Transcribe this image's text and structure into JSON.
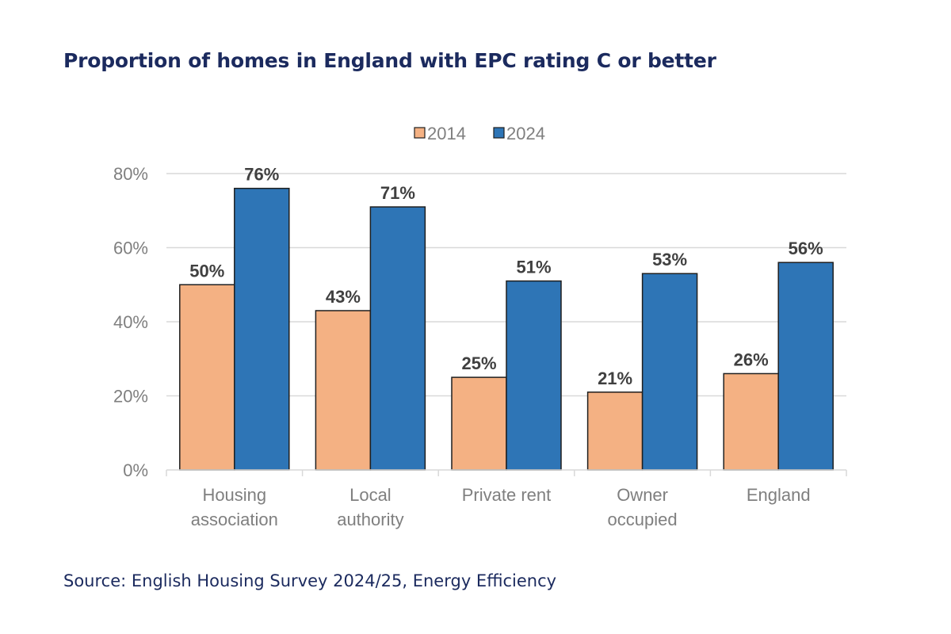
{
  "header": {
    "title": "Proportion of homes in England with EPC rating C or better"
  },
  "footer": {
    "source": "Source: English Housing Survey 2024/25, Energy Efficiency"
  },
  "chart_data": {
    "type": "bar",
    "title": "Proportion of homes in England with EPC rating C or better",
    "xlabel": "",
    "ylabel": "",
    "categories": [
      [
        "Housing",
        "association"
      ],
      [
        "Local",
        "authority"
      ],
      [
        "Private rent"
      ],
      [
        "Owner",
        "occupied"
      ],
      [
        "England"
      ]
    ],
    "series": [
      {
        "name": "2014",
        "color": "#f4b183",
        "values": [
          50,
          43,
          25,
          21,
          26
        ],
        "labels": [
          "50%",
          "43%",
          "25%",
          "21%",
          "26%"
        ]
      },
      {
        "name": "2024",
        "color": "#2e75b6",
        "values": [
          76,
          71,
          51,
          53,
          56
        ],
        "labels": [
          "76%",
          "71%",
          "51%",
          "53%",
          "56%"
        ]
      }
    ],
    "ylim": [
      0,
      80
    ],
    "yticks": [
      0,
      20,
      40,
      60,
      80
    ],
    "ytick_labels": [
      "0%",
      "20%",
      "40%",
      "60%",
      "80%"
    ],
    "grid": true,
    "legend": "top-center"
  }
}
